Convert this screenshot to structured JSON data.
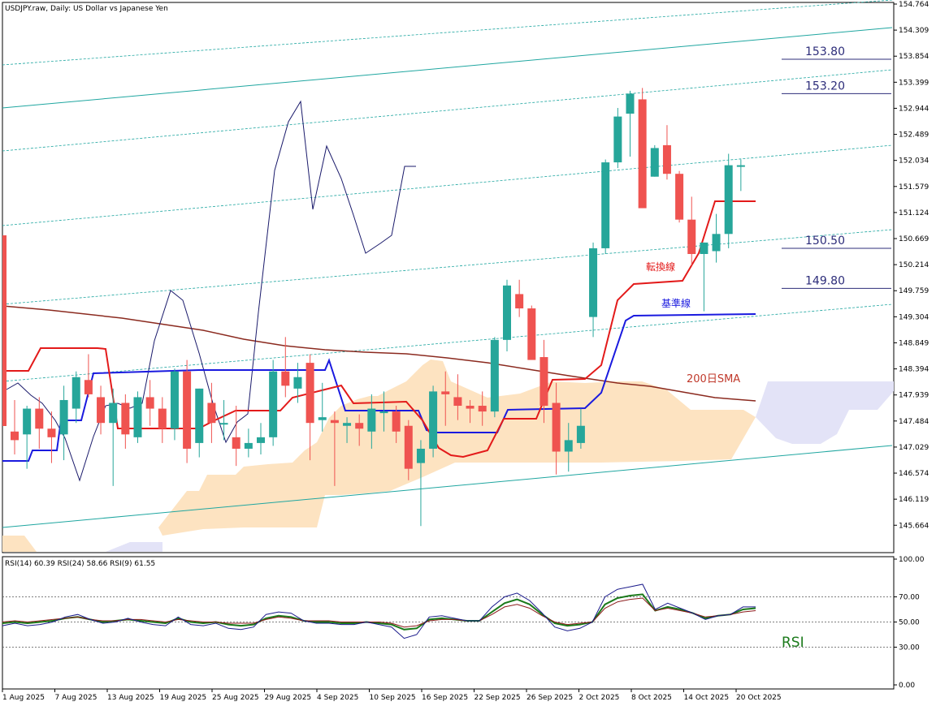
{
  "window": {
    "title": "USDJPY.raw, Daily:  US Dollar vs Japanese Yen"
  },
  "chart_data": [
    {
      "type": "candlestick",
      "title": "USDJPY.raw, Daily:  US Dollar vs Japanese Yen",
      "yaxis": {
        "min": 145.2,
        "max": 154.764,
        "ticks": [
          "154.764",
          "154.309",
          "153.854",
          "153.399",
          "152.944",
          "152.489",
          "152.034",
          "151.579",
          "151.124",
          "150.669",
          "150.214",
          "149.759",
          "149.304",
          "148.849",
          "148.394",
          "147.939",
          "147.484",
          "147.029",
          "146.574",
          "146.119",
          "145.664"
        ]
      },
      "xaxis": {
        "labels": [
          "1 Aug 2025",
          "7 Aug 2025",
          "13 Aug 2025",
          "19 Aug 2025",
          "25 Aug 2025",
          "29 Aug 2025",
          "4 Sep 2025",
          "10 Sep 2025",
          "16 Sep 2025",
          "22 Sep 2025",
          "26 Sep 2025",
          "2 Oct 2025",
          "8 Oct 2025",
          "14 Oct 2025",
          "20 Oct 2025"
        ]
      },
      "candles": [
        {
          "o": 147.3,
          "h": 147.85,
          "l": 146.9,
          "c": 147.15
        },
        {
          "o": 147.25,
          "h": 147.75,
          "l": 146.65,
          "c": 147.7
        },
        {
          "o": 147.7,
          "h": 147.9,
          "l": 147.0,
          "c": 147.35
        },
        {
          "o": 147.35,
          "h": 147.65,
          "l": 146.75,
          "c": 147.2
        },
        {
          "o": 147.25,
          "h": 148.1,
          "l": 146.8,
          "c": 147.85
        },
        {
          "o": 147.7,
          "h": 148.35,
          "l": 147.45,
          "c": 148.25
        },
        {
          "o": 148.2,
          "h": 148.65,
          "l": 147.9,
          "c": 147.95
        },
        {
          "o": 147.9,
          "h": 148.1,
          "l": 147.25,
          "c": 147.45
        },
        {
          "o": 147.45,
          "h": 148.05,
          "l": 146.35,
          "c": 147.8
        },
        {
          "o": 147.8,
          "h": 147.95,
          "l": 147.0,
          "c": 147.25
        },
        {
          "o": 147.2,
          "h": 148.0,
          "l": 147.1,
          "c": 147.9
        },
        {
          "o": 147.9,
          "h": 148.2,
          "l": 147.4,
          "c": 147.7
        },
        {
          "o": 147.7,
          "h": 147.9,
          "l": 147.1,
          "c": 147.35
        },
        {
          "o": 147.35,
          "h": 148.4,
          "l": 147.15,
          "c": 148.35
        },
        {
          "o": 148.35,
          "h": 148.55,
          "l": 146.75,
          "c": 147.0
        },
        {
          "o": 147.1,
          "h": 148.05,
          "l": 146.85,
          "c": 148.05
        },
        {
          "o": 147.8,
          "h": 148.15,
          "l": 147.1,
          "c": 147.45
        },
        {
          "o": 147.45,
          "h": 147.85,
          "l": 147.15,
          "c": 147.45
        },
        {
          "o": 147.2,
          "h": 147.75,
          "l": 146.7,
          "c": 147.0
        },
        {
          "o": 147.0,
          "h": 147.35,
          "l": 146.85,
          "c": 147.1
        },
        {
          "o": 147.1,
          "h": 147.45,
          "l": 146.9,
          "c": 147.2
        },
        {
          "o": 147.2,
          "h": 148.55,
          "l": 147.05,
          "c": 148.35
        },
        {
          "o": 148.35,
          "h": 148.95,
          "l": 147.9,
          "c": 148.1
        },
        {
          "o": 148.05,
          "h": 148.5,
          "l": 147.8,
          "c": 148.25
        },
        {
          "o": 148.5,
          "h": 148.65,
          "l": 146.8,
          "c": 147.45
        },
        {
          "o": 147.5,
          "h": 148.15,
          "l": 147.3,
          "c": 147.55
        },
        {
          "o": 147.5,
          "h": 147.65,
          "l": 146.35,
          "c": 147.45
        },
        {
          "o": 147.4,
          "h": 147.55,
          "l": 147.1,
          "c": 147.45
        },
        {
          "o": 147.45,
          "h": 147.6,
          "l": 147.05,
          "c": 147.35
        },
        {
          "o": 147.3,
          "h": 147.95,
          "l": 147.0,
          "c": 147.7
        },
        {
          "o": 147.65,
          "h": 148.0,
          "l": 147.3,
          "c": 147.65
        },
        {
          "o": 147.65,
          "h": 147.75,
          "l": 147.1,
          "c": 147.3
        },
        {
          "o": 147.4,
          "h": 147.5,
          "l": 146.45,
          "c": 146.65
        },
        {
          "o": 146.75,
          "h": 147.15,
          "l": 145.65,
          "c": 147.0
        },
        {
          "o": 147.0,
          "h": 148.1,
          "l": 146.85,
          "c": 148.0
        },
        {
          "o": 148.0,
          "h": 148.35,
          "l": 147.4,
          "c": 147.95
        },
        {
          "o": 147.9,
          "h": 148.3,
          "l": 147.5,
          "c": 147.75
        },
        {
          "o": 147.75,
          "h": 147.85,
          "l": 147.45,
          "c": 147.7
        },
        {
          "o": 147.75,
          "h": 148.0,
          "l": 147.4,
          "c": 147.65
        },
        {
          "o": 147.65,
          "h": 148.95,
          "l": 147.55,
          "c": 148.9
        },
        {
          "o": 148.9,
          "h": 149.95,
          "l": 148.7,
          "c": 149.85
        },
        {
          "o": 149.7,
          "h": 149.95,
          "l": 149.3,
          "c": 149.45
        },
        {
          "o": 149.45,
          "h": 149.5,
          "l": 148.6,
          "c": 148.55
        },
        {
          "o": 148.6,
          "h": 148.9,
          "l": 147.45,
          "c": 147.75
        },
        {
          "o": 147.8,
          "h": 148.15,
          "l": 146.55,
          "c": 146.95
        },
        {
          "o": 146.95,
          "h": 147.45,
          "l": 146.6,
          "c": 147.15
        },
        {
          "o": 147.1,
          "h": 147.7,
          "l": 147.0,
          "c": 147.4
        },
        {
          "o": 149.3,
          "h": 150.6,
          "l": 148.95,
          "c": 150.5
        },
        {
          "o": 150.5,
          "h": 152.05,
          "l": 150.4,
          "c": 152.0
        },
        {
          "o": 152.0,
          "h": 152.95,
          "l": 151.9,
          "c": 152.8
        },
        {
          "o": 152.85,
          "h": 153.25,
          "l": 152.1,
          "c": 153.2
        },
        {
          "o": 153.1,
          "h": 153.3,
          "l": 151.2,
          "c": 151.2
        },
        {
          "o": 151.75,
          "h": 152.3,
          "l": 151.75,
          "c": 152.25
        },
        {
          "o": 152.3,
          "h": 152.65,
          "l": 151.7,
          "c": 151.8
        },
        {
          "o": 151.8,
          "h": 151.85,
          "l": 150.95,
          "c": 151.0
        },
        {
          "o": 151.0,
          "h": 151.4,
          "l": 150.2,
          "c": 150.4
        },
        {
          "o": 150.4,
          "h": 150.6,
          "l": 149.4,
          "c": 150.6
        },
        {
          "o": 150.45,
          "h": 151.1,
          "l": 150.25,
          "c": 150.75
        },
        {
          "o": 150.75,
          "h": 152.15,
          "l": 150.5,
          "c": 151.95
        },
        {
          "o": 151.95,
          "h": 152.05,
          "l": 151.5,
          "c": 151.95
        }
      ],
      "ichimoku": {
        "tenkan_label": "転換線",
        "kijun_label": "基準線"
      },
      "sma": {
        "label": "200日SMA"
      },
      "levels": [
        {
          "value": 153.8,
          "label": "153.80"
        },
        {
          "value": 153.2,
          "label": "153.20"
        },
        {
          "value": 150.5,
          "label": "150.50"
        },
        {
          "value": 149.8,
          "label": "149.80"
        }
      ]
    },
    {
      "type": "line",
      "title": "RSI(14) 60.39 RSI(24) 58.66 RSI(9) 61.55",
      "annotation": "RSI",
      "yaxis": {
        "min": 0,
        "max": 100,
        "ticks": [
          "100.00",
          "70.00",
          "50.00",
          "30.00",
          "0.00"
        ],
        "guides": [
          70,
          50,
          30
        ]
      },
      "series": [
        {
          "name": "RSI(14)",
          "values": [
            49,
            50,
            49,
            50,
            51,
            53,
            54,
            52,
            50,
            51,
            52,
            51,
            50,
            49,
            53,
            50,
            49,
            50,
            48,
            47,
            48,
            53,
            55,
            54,
            51,
            50,
            50,
            49,
            49,
            50,
            49,
            48,
            44,
            45,
            52,
            53,
            52,
            51,
            51,
            58,
            65,
            68,
            64,
            56,
            49,
            47,
            48,
            50,
            64,
            69,
            71,
            72,
            59,
            62,
            60,
            57,
            53,
            55,
            56,
            60,
            61
          ]
        },
        {
          "name": "RSI(24)",
          "values": [
            50,
            51,
            50,
            51,
            52,
            53,
            54,
            52,
            51,
            51,
            52,
            52,
            51,
            50,
            52,
            51,
            50,
            50,
            49,
            49,
            49,
            52,
            54,
            53,
            51,
            51,
            51,
            50,
            50,
            50,
            50,
            49,
            46,
            47,
            51,
            52,
            52,
            51,
            51,
            56,
            62,
            64,
            61,
            55,
            50,
            48,
            49,
            50,
            61,
            66,
            68,
            69,
            59,
            61,
            59,
            57,
            54,
            55,
            56,
            58,
            59
          ]
        },
        {
          "name": "RSI(9)",
          "values": [
            47,
            49,
            47,
            48,
            50,
            54,
            56,
            52,
            49,
            50,
            53,
            50,
            48,
            47,
            54,
            48,
            47,
            49,
            45,
            44,
            46,
            56,
            58,
            57,
            51,
            49,
            49,
            48,
            48,
            50,
            48,
            46,
            37,
            40,
            54,
            55,
            53,
            51,
            51,
            62,
            70,
            73,
            67,
            57,
            46,
            43,
            45,
            50,
            70,
            76,
            78,
            80,
            60,
            65,
            61,
            57,
            52,
            55,
            56,
            62,
            62
          ]
        }
      ]
    }
  ],
  "colors": {
    "bull": "#26a69a",
    "bear": "#ef5350",
    "tenkan": "#e31a1a",
    "kijun": "#1a1adf",
    "sma": "#8b2a1f",
    "kumo_bull": "#fde3c1",
    "kumo_bear": "#e3e3f7",
    "channel": "#1fa6a0",
    "level_line": "#2d2d7a",
    "rsi14": "#1b7a1b",
    "rsi24": "#8b1a1a",
    "rsi9": "#1a1a8b",
    "oscillator": "#1a1a6b"
  }
}
